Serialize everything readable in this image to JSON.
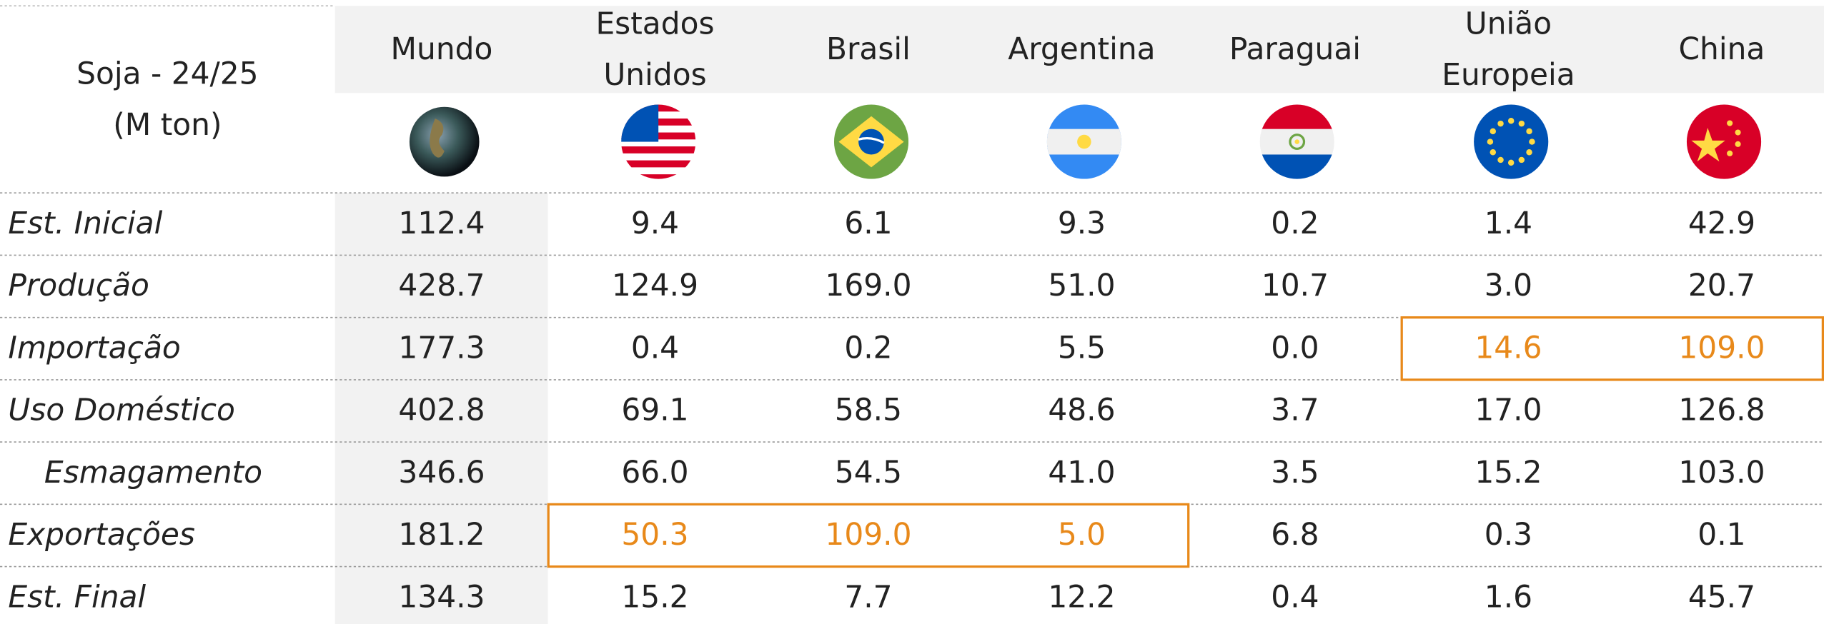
{
  "header": {
    "title": [
      "Soja - 24/25",
      "(M ton)"
    ],
    "columns": [
      [
        "Mundo"
      ],
      [
        "Estados",
        "Unidos"
      ],
      [
        "Brasil"
      ],
      [
        "Argentina"
      ],
      [
        "Paraguai"
      ],
      [
        "União",
        "Europeia"
      ],
      [
        "China"
      ]
    ]
  },
  "table": {
    "rows": [
      {
        "label": "Est. Inicial",
        "values": [
          "112.4",
          "9.4",
          "6.1",
          "9.3",
          "0.2",
          "1.4",
          "42.9"
        ]
      },
      {
        "label": "Produção",
        "values": [
          "428.7",
          "124.9",
          "169.0",
          "51.0",
          "10.7",
          "3.0",
          "20.7"
        ]
      },
      {
        "label": "Importação",
        "values": [
          "177.3",
          "0.4",
          "0.2",
          "5.5",
          "0.0",
          "14.6",
          "109.0"
        ]
      },
      {
        "label": "Uso Doméstico",
        "values": [
          "402.8",
          "69.1",
          "58.5",
          "48.6",
          "3.7",
          "17.0",
          "126.8"
        ]
      },
      {
        "label": "Esmagamento",
        "indent": true,
        "values": [
          "346.6",
          "66.0",
          "54.5",
          "41.0",
          "3.5",
          "15.2",
          "103.0"
        ]
      },
      {
        "label": "Exportações",
        "values": [
          "181.2",
          "50.3",
          "109.0",
          "5.0",
          "6.8",
          "0.3",
          "0.1"
        ]
      },
      {
        "label": "Est. Final",
        "values": [
          "134.3",
          "15.2",
          "7.7",
          "12.2",
          "0.4",
          "1.6",
          "45.7"
        ]
      }
    ],
    "highlight_color": "#e8891a",
    "highlights": [
      {
        "row": 2,
        "columns": [
          5,
          6
        ]
      },
      {
        "row": 5,
        "columns": [
          1,
          2,
          3
        ]
      }
    ]
  }
}
